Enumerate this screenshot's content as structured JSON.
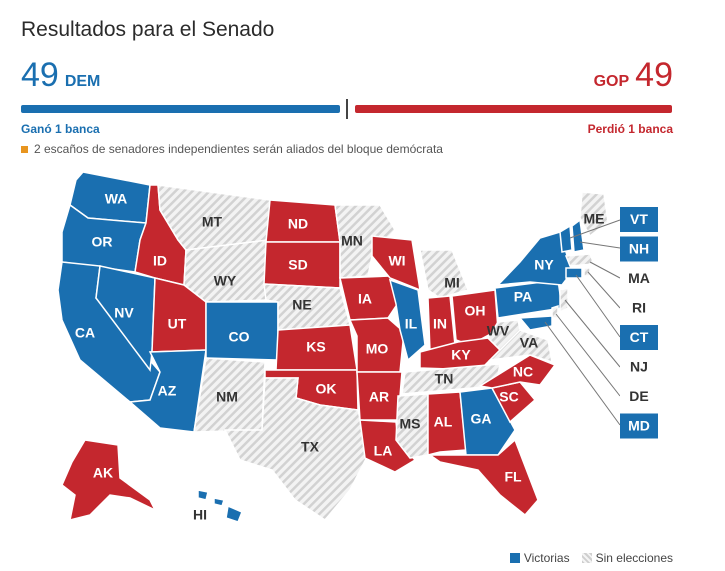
{
  "title": "Resultados para el Senado",
  "dem": {
    "count": "49",
    "party": "DEM",
    "note": "Ganó 1 banca"
  },
  "gop": {
    "count": "49",
    "party": "GOP",
    "note": "Perdió 1 banca"
  },
  "independent_note": "2 escaños de senadores independientes serán aliados del bloque demócrata",
  "colors": {
    "dem": "#1a6fb0",
    "gop": "#c4272e",
    "none": "hatched-gray",
    "independent": "#e8951f"
  },
  "legend": {
    "win": "Victorias",
    "none": "Sin elecciones"
  },
  "states": [
    {
      "code": "WA",
      "status": "dem"
    },
    {
      "code": "OR",
      "status": "dem"
    },
    {
      "code": "CA",
      "status": "dem"
    },
    {
      "code": "NV",
      "status": "dem"
    },
    {
      "code": "ID",
      "status": "gop"
    },
    {
      "code": "MT",
      "status": "none"
    },
    {
      "code": "WY",
      "status": "none"
    },
    {
      "code": "UT",
      "status": "gop"
    },
    {
      "code": "AZ",
      "status": "dem"
    },
    {
      "code": "CO",
      "status": "dem"
    },
    {
      "code": "NM",
      "status": "none"
    },
    {
      "code": "ND",
      "status": "gop"
    },
    {
      "code": "SD",
      "status": "gop"
    },
    {
      "code": "NE",
      "status": "none"
    },
    {
      "code": "KS",
      "status": "gop"
    },
    {
      "code": "OK",
      "status": "gop"
    },
    {
      "code": "TX",
      "status": "none"
    },
    {
      "code": "MN",
      "status": "none"
    },
    {
      "code": "IA",
      "status": "gop"
    },
    {
      "code": "MO",
      "status": "gop"
    },
    {
      "code": "AR",
      "status": "gop"
    },
    {
      "code": "LA",
      "status": "gop"
    },
    {
      "code": "WI",
      "status": "gop"
    },
    {
      "code": "IL",
      "status": "dem"
    },
    {
      "code": "MI",
      "status": "none"
    },
    {
      "code": "IN",
      "status": "gop"
    },
    {
      "code": "OH",
      "status": "gop"
    },
    {
      "code": "KY",
      "status": "gop"
    },
    {
      "code": "TN",
      "status": "none"
    },
    {
      "code": "MS",
      "status": "none"
    },
    {
      "code": "AL",
      "status": "gop"
    },
    {
      "code": "GA",
      "status": "dem"
    },
    {
      "code": "FL",
      "status": "gop"
    },
    {
      "code": "SC",
      "status": "gop"
    },
    {
      "code": "NC",
      "status": "gop"
    },
    {
      "code": "VA",
      "status": "none"
    },
    {
      "code": "WV",
      "status": "none"
    },
    {
      "code": "PA",
      "status": "dem"
    },
    {
      "code": "NY",
      "status": "dem"
    },
    {
      "code": "ME",
      "status": "none"
    },
    {
      "code": "AK",
      "status": "gop"
    },
    {
      "code": "HI",
      "status": "dem"
    }
  ],
  "northeast_callouts": [
    {
      "code": "VT",
      "status": "dem"
    },
    {
      "code": "NH",
      "status": "dem"
    },
    {
      "code": "MA",
      "status": "none"
    },
    {
      "code": "RI",
      "status": "none"
    },
    {
      "code": "CT",
      "status": "dem"
    },
    {
      "code": "NJ",
      "status": "none"
    },
    {
      "code": "DE",
      "status": "none"
    },
    {
      "code": "MD",
      "status": "dem"
    }
  ]
}
